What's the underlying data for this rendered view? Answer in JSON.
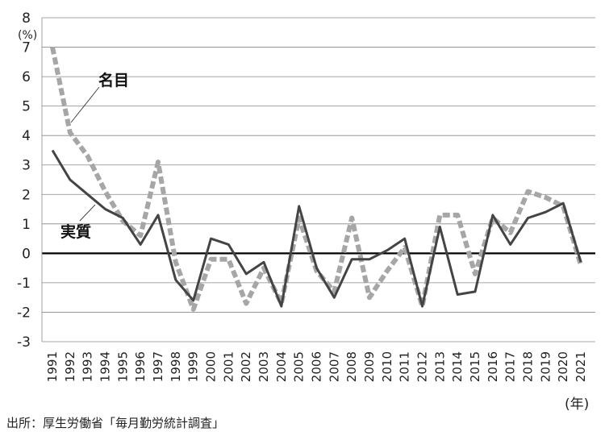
{
  "chart_data": {
    "type": "line",
    "y_unit": "(%)",
    "x_unit": "(年)",
    "ylim": [
      -3,
      8
    ],
    "yticks": [
      "8",
      "7",
      "6",
      "5",
      "4",
      "3",
      "2",
      "1",
      "0",
      "-1",
      "-2",
      "-3"
    ],
    "x": [
      "1991",
      "1992",
      "1993",
      "1994",
      "1995",
      "1996",
      "1997",
      "1998",
      "1999",
      "2000",
      "2001",
      "2002",
      "2003",
      "2004",
      "2005",
      "2006",
      "2007",
      "2008",
      "2009",
      "2010",
      "2011",
      "2012",
      "2013",
      "2014",
      "2015",
      "2016",
      "2017",
      "2018",
      "2019",
      "2020",
      "2021"
    ],
    "series": [
      {
        "name": "名目",
        "style": "dashed",
        "color": "#a6a6a6",
        "values": [
          7.0,
          4.1,
          3.3,
          2.1,
          1.1,
          0.6,
          3.1,
          -0.3,
          -1.9,
          -0.2,
          -0.2,
          -1.7,
          -0.5,
          -1.7,
          1.2,
          -0.6,
          -1.3,
          1.2,
          -1.5,
          -0.6,
          0.2,
          -1.8,
          1.3,
          1.3,
          -0.7,
          1.2,
          0.7,
          2.1,
          1.9,
          1.6,
          -0.4
        ]
      },
      {
        "name": "実質",
        "style": "solid",
        "color": "#444444",
        "values": [
          3.5,
          2.5,
          2.0,
          1.5,
          1.2,
          0.3,
          1.3,
          -0.9,
          -1.6,
          0.5,
          0.3,
          -0.7,
          -0.3,
          -1.8,
          1.6,
          -0.5,
          -1.5,
          -0.2,
          -0.2,
          0.1,
          0.5,
          -1.8,
          0.9,
          -1.4,
          -1.3,
          1.3,
          0.3,
          1.2,
          1.4,
          1.7,
          -0.3
        ]
      }
    ],
    "grid": true,
    "zero_line": true
  },
  "source": "出所：厚生労働省「毎月勤労統計調査」"
}
